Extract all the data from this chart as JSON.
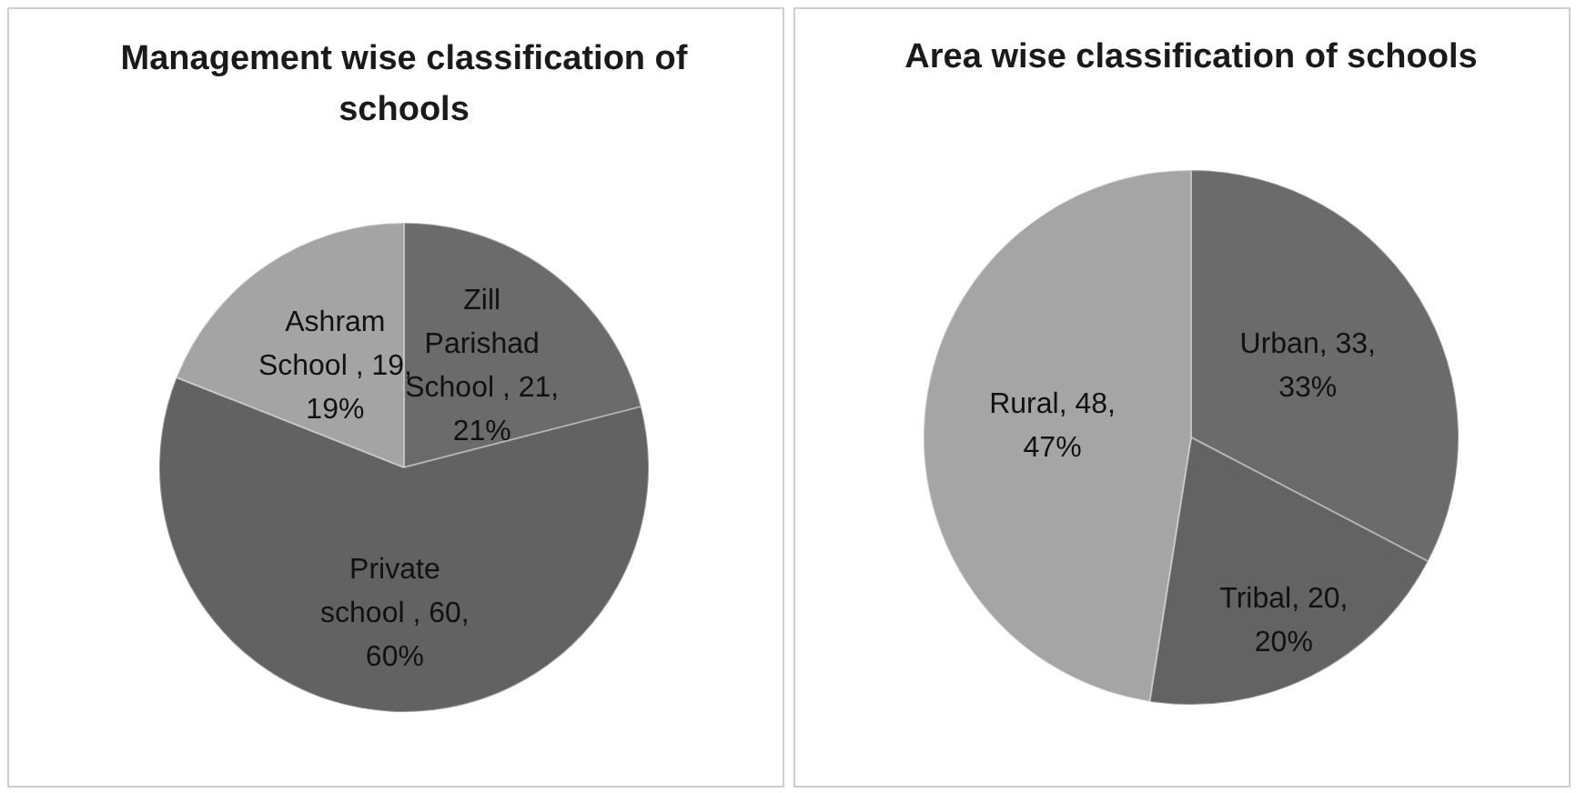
{
  "chart_data": [
    {
      "type": "pie",
      "title": "Management wise classification of schools",
      "categories": [
        "Zill Parishad School ",
        "Private school ",
        "Ashram School "
      ],
      "values": [
        21,
        60,
        19
      ],
      "colors": [
        "#6b6b6b",
        "#626262",
        "#a4a4a4"
      ],
      "value_labels": [
        "21, 21%",
        "60, 60%",
        "19, 19%"
      ]
    },
    {
      "type": "pie",
      "title": "Area wise classification of schools",
      "categories": [
        "Urban",
        "Tribal",
        "Rural"
      ],
      "values": [
        33,
        20,
        48
      ],
      "colors": [
        "#6b6b6b",
        "#636363",
        "#a5a5a5"
      ],
      "value_labels": [
        "33, 33%",
        "20, 20%",
        "48, 47%"
      ]
    }
  ]
}
